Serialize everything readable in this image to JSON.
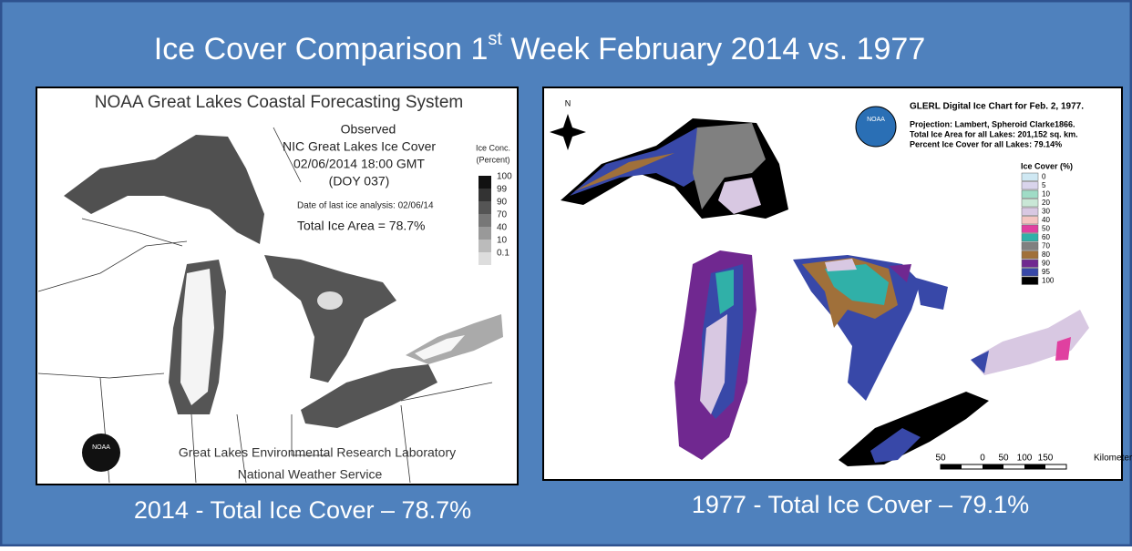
{
  "title": {
    "main": "Ice Cover Comparison 1",
    "sup": "st",
    "rest": " Week February 2014 vs. 1977"
  },
  "left_map": {
    "header": "NOAA Great Lakes Coastal Forecasting System",
    "observed": "Observed",
    "source": "NIC Great Lakes Ice Cover",
    "datetime": "02/06/2014 18:00 GMT",
    "doy": "(DOY 037)",
    "last_analysis": "Date of last ice analysis: 02/06/14",
    "total": "Total Ice Area = 78.7%",
    "legend_title": [
      "Ice Conc.",
      "(Percent)"
    ],
    "legend": [
      {
        "label": "100",
        "color": "#111111"
      },
      {
        "label": "99",
        "color": "#333333"
      },
      {
        "label": "90",
        "color": "#555555"
      },
      {
        "label": "70",
        "color": "#777777"
      },
      {
        "label": "40",
        "color": "#999999"
      },
      {
        "label": "10",
        "color": "#bbbbbb"
      },
      {
        "label": "0.1",
        "color": "#dddddd"
      }
    ],
    "logo": "NOAA",
    "footer": [
      "Great Lakes Environmental Research Laboratory",
      "National Weather Service"
    ]
  },
  "right_map": {
    "north": "N",
    "title": "GLERL Digital Ice Chart for Feb. 2, 1977.",
    "projection": "Projection: Lambert, Spheroid Clarke1866.",
    "area": "Total Ice Area for all Lakes: 201,152 sq. km.",
    "percent": "Percent Ice Cover for all Lakes: 79.14%",
    "logo": "NOAA",
    "legend_title": "Ice Cover (%)",
    "legend": [
      {
        "label": "0",
        "color": "#cfe8f3"
      },
      {
        "label": "5",
        "color": "#d9d4ec"
      },
      {
        "label": "10",
        "color": "#9fdcc6"
      },
      {
        "label": "20",
        "color": "#c9e7d6"
      },
      {
        "label": "30",
        "color": "#d8c8e2"
      },
      {
        "label": "40",
        "color": "#f4c4c0"
      },
      {
        "label": "50",
        "color": "#e040a0"
      },
      {
        "label": "60",
        "color": "#30b0a8"
      },
      {
        "label": "70",
        "color": "#808080"
      },
      {
        "label": "80",
        "color": "#a0703a"
      },
      {
        "label": "90",
        "color": "#702890"
      },
      {
        "label": "95",
        "color": "#3848a8"
      },
      {
        "label": "100",
        "color": "#000000"
      }
    ],
    "scale": [
      "50",
      "0",
      "50",
      "100",
      "150"
    ],
    "scale_unit": "Kilometers"
  },
  "captions": [
    "2014 - Total Ice Cover – 78.7%",
    "1977 - Total Ice Cover – 79.1%"
  ]
}
